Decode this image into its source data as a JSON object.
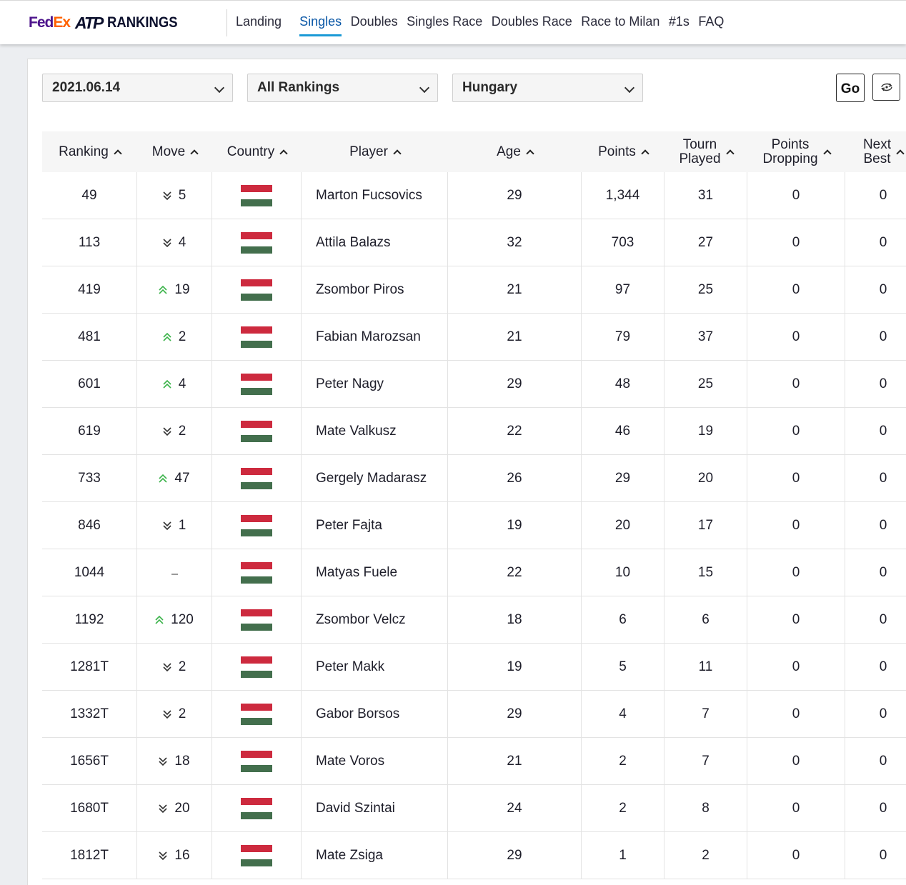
{
  "brand": {
    "fed": "Fed",
    "ex": "Ex",
    "atp": "ATP",
    "rankings": "RANKINGS"
  },
  "nav": [
    {
      "label": "Landing",
      "active": false
    },
    {
      "label": "Singles",
      "active": true
    },
    {
      "label": "Doubles",
      "active": false
    },
    {
      "label": "Singles Race",
      "active": false
    },
    {
      "label": "Doubles Race",
      "active": false
    },
    {
      "label": "Race to Milan",
      "active": false
    },
    {
      "label": "#1s",
      "active": false
    },
    {
      "label": "FAQ",
      "active": false
    }
  ],
  "filters": {
    "date": "2021.06.14",
    "range": "All Rankings",
    "country": "Hungary",
    "go_label": "Go"
  },
  "colors": {
    "move_up": "#3bb34a",
    "move_down": "#333333",
    "flag_red": "#cd2a3e",
    "flag_white": "#ffffff",
    "flag_green": "#436f4d"
  },
  "table": {
    "columns": [
      {
        "key": "ranking",
        "label": "Ranking",
        "line2": ""
      },
      {
        "key": "move",
        "label": "Move",
        "line2": ""
      },
      {
        "key": "country",
        "label": "Country",
        "line2": ""
      },
      {
        "key": "player",
        "label": "Player",
        "line2": ""
      },
      {
        "key": "age",
        "label": "Age",
        "line2": ""
      },
      {
        "key": "points",
        "label": "Points",
        "line2": ""
      },
      {
        "key": "tourn",
        "label": "Tourn",
        "line2": "Played"
      },
      {
        "key": "dropping",
        "label": "Points",
        "line2": "Dropping"
      },
      {
        "key": "next",
        "label": "Next",
        "line2": "Best"
      }
    ],
    "rows": [
      {
        "rank": "49",
        "dir": "down",
        "move": "5",
        "country": "Hungary",
        "player": "Marton Fucsovics",
        "age": "29",
        "points": "1,344",
        "played": "31",
        "dropping": "0",
        "next": "0"
      },
      {
        "rank": "113",
        "dir": "down",
        "move": "4",
        "country": "Hungary",
        "player": "Attila Balazs",
        "age": "32",
        "points": "703",
        "played": "27",
        "dropping": "0",
        "next": "0"
      },
      {
        "rank": "419",
        "dir": "up",
        "move": "19",
        "country": "Hungary",
        "player": "Zsombor Piros",
        "age": "21",
        "points": "97",
        "played": "25",
        "dropping": "0",
        "next": "0"
      },
      {
        "rank": "481",
        "dir": "up",
        "move": "2",
        "country": "Hungary",
        "player": "Fabian Marozsan",
        "age": "21",
        "points": "79",
        "played": "37",
        "dropping": "0",
        "next": "0"
      },
      {
        "rank": "601",
        "dir": "up",
        "move": "4",
        "country": "Hungary",
        "player": "Peter Nagy",
        "age": "29",
        "points": "48",
        "played": "25",
        "dropping": "0",
        "next": "0"
      },
      {
        "rank": "619",
        "dir": "down",
        "move": "2",
        "country": "Hungary",
        "player": "Mate Valkusz",
        "age": "22",
        "points": "46",
        "played": "19",
        "dropping": "0",
        "next": "0"
      },
      {
        "rank": "733",
        "dir": "up",
        "move": "47",
        "country": "Hungary",
        "player": "Gergely Madarasz",
        "age": "26",
        "points": "29",
        "played": "20",
        "dropping": "0",
        "next": "0"
      },
      {
        "rank": "846",
        "dir": "down",
        "move": "1",
        "country": "Hungary",
        "player": "Peter Fajta",
        "age": "19",
        "points": "20",
        "played": "17",
        "dropping": "0",
        "next": "0"
      },
      {
        "rank": "1044",
        "dir": "none",
        "move": "",
        "country": "Hungary",
        "player": "Matyas Fuele",
        "age": "22",
        "points": "10",
        "played": "15",
        "dropping": "0",
        "next": "0"
      },
      {
        "rank": "1192",
        "dir": "up",
        "move": "120",
        "country": "Hungary",
        "player": "Zsombor Velcz",
        "age": "18",
        "points": "6",
        "played": "6",
        "dropping": "0",
        "next": "0"
      },
      {
        "rank": "1281T",
        "dir": "down",
        "move": "2",
        "country": "Hungary",
        "player": "Peter Makk",
        "age": "19",
        "points": "5",
        "played": "11",
        "dropping": "0",
        "next": "0"
      },
      {
        "rank": "1332T",
        "dir": "down",
        "move": "2",
        "country": "Hungary",
        "player": "Gabor Borsos",
        "age": "29",
        "points": "4",
        "played": "7",
        "dropping": "0",
        "next": "0"
      },
      {
        "rank": "1656T",
        "dir": "down",
        "move": "18",
        "country": "Hungary",
        "player": "Mate Voros",
        "age": "21",
        "points": "2",
        "played": "7",
        "dropping": "0",
        "next": "0"
      },
      {
        "rank": "1680T",
        "dir": "down",
        "move": "20",
        "country": "Hungary",
        "player": "David Szintai",
        "age": "24",
        "points": "2",
        "played": "8",
        "dropping": "0",
        "next": "0"
      },
      {
        "rank": "1812T",
        "dir": "down",
        "move": "16",
        "country": "Hungary",
        "player": "Mate Zsiga",
        "age": "29",
        "points": "1",
        "played": "2",
        "dropping": "0",
        "next": "0"
      }
    ]
  }
}
